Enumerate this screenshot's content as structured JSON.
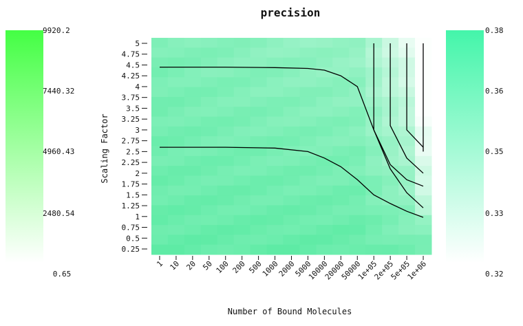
{
  "chart_data": {
    "type": "heatmap",
    "title": "precision",
    "xlabel": "Number of Bound Molecules",
    "ylabel": "Scaling Factor",
    "x_ticks": [
      "1",
      "10",
      "20",
      "50",
      "100",
      "200",
      "500",
      "1000",
      "2000",
      "5000",
      "10000",
      "20000",
      "50000",
      "1e+05",
      "2e+05",
      "5e+05",
      "1e+06"
    ],
    "y_ticks": [
      "0.25",
      "0.5",
      "0.75",
      "1",
      "1.25",
      "1.5",
      "1.75",
      "2",
      "2.25",
      "2.5",
      "2.75",
      "3",
      "3.25",
      "3.5",
      "3.75",
      "4",
      "4.25",
      "4.5",
      "4.75",
      "5"
    ],
    "ylim": [
      0.25,
      5
    ],
    "grid": false,
    "left_colorbar": {
      "colors": [
        "#44ff44",
        "#ffffff"
      ],
      "labels": [
        "9920.2",
        "7440.32",
        "4960.43",
        "2480.54",
        "0.65"
      ]
    },
    "right_colorbar": {
      "colors": [
        "#44f5aa",
        "#ffffff"
      ],
      "labels": [
        "0.38",
        "0.36",
        "0.35",
        "0.33",
        "0.32"
      ]
    },
    "contours": [
      {
        "points": [
          [
            "1",
            2.6
          ],
          [
            "100",
            2.6
          ],
          [
            "1000",
            2.58
          ],
          [
            "5000",
            2.5
          ],
          [
            "10000",
            2.35
          ],
          [
            "20000",
            2.15
          ],
          [
            "50000",
            1.85
          ],
          [
            "1e+05",
            1.5
          ],
          [
            "2e+05",
            1.3
          ],
          [
            "5e+05",
            1.12
          ],
          [
            "1e+06",
            0.98
          ]
        ]
      },
      {
        "points": [
          [
            "1",
            4.45
          ],
          [
            "100",
            4.45
          ],
          [
            "1000",
            4.44
          ],
          [
            "5000",
            4.42
          ],
          [
            "10000",
            4.38
          ],
          [
            "20000",
            4.25
          ],
          [
            "50000",
            4.0
          ],
          [
            "1e+05",
            3.0
          ],
          [
            "2e+05",
            2.1
          ],
          [
            "5e+05",
            1.55
          ],
          [
            "1e+06",
            1.2
          ]
        ]
      },
      {
        "points": [
          [
            "1e+05",
            5.0
          ],
          [
            "1e+05",
            3.0
          ],
          [
            "2e+05",
            2.2
          ],
          [
            "5e+05",
            1.85
          ],
          [
            "1e+06",
            1.7
          ]
        ]
      },
      {
        "points": [
          [
            "2e+05",
            5.0
          ],
          [
            "2e+05",
            3.1
          ],
          [
            "5e+05",
            2.35
          ],
          [
            "1e+06",
            2.0
          ]
        ]
      },
      {
        "points": [
          [
            "5e+05",
            5.0
          ],
          [
            "5e+05",
            3.0
          ],
          [
            "1e+06",
            2.6
          ]
        ]
      },
      {
        "points": [
          [
            "1e+06",
            5.0
          ],
          [
            "1e+06",
            2.5
          ]
        ]
      }
    ]
  }
}
